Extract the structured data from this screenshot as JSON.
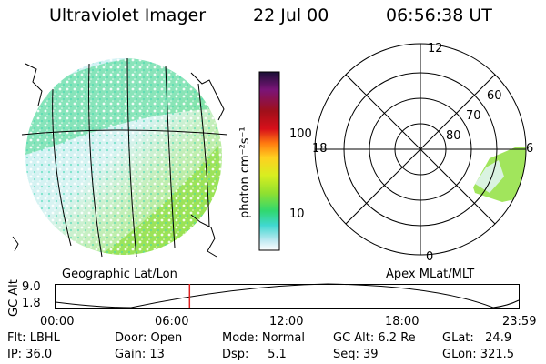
{
  "header": {
    "title": "Ultraviolet Imager",
    "date": "22 Jul 00",
    "time": "06:56:38 UT"
  },
  "colorbar": {
    "unit_label": "photon cm⁻²s⁻¹",
    "ticks": [
      "100",
      "10"
    ],
    "colors": [
      "#1a0f35",
      "#7a1478",
      "#a0101a",
      "#d8101a",
      "#ff7a10",
      "#ffd020",
      "#d8ee20",
      "#90e030",
      "#30d870",
      "#40d8d0",
      "#b8e8f0",
      "#ffffff"
    ]
  },
  "geo_panel": {
    "label": "Geographic Lat/Lon"
  },
  "apex_panel": {
    "label": "Apex MLat/MLT",
    "mlt_labels": {
      "top": "12",
      "left": "18",
      "right": "6",
      "bottom": "0"
    },
    "lat_labels": [
      "60",
      "70",
      "80"
    ]
  },
  "timeline": {
    "axis_label": "GC Alt",
    "y_ticks": [
      "9.0",
      "1.8"
    ],
    "x_ticks": [
      "00:00",
      "06:00",
      "12:00",
      "18:00",
      "23:59"
    ],
    "current_fraction": 0.2894,
    "marker_color": "#e02020"
  },
  "info": {
    "flt": "Flt: LBHL",
    "ip": "IP: 36.0",
    "door": "Door: Open",
    "gain": "Gain: 13",
    "mode": "Mode: Normal",
    "dsp": "Dsp:     5.1",
    "gcalt": "GC Alt: 6.2 Re",
    "seq": "Seq: 39",
    "glat": "GLat:   24.9",
    "glon": "GLon: 321.5"
  }
}
